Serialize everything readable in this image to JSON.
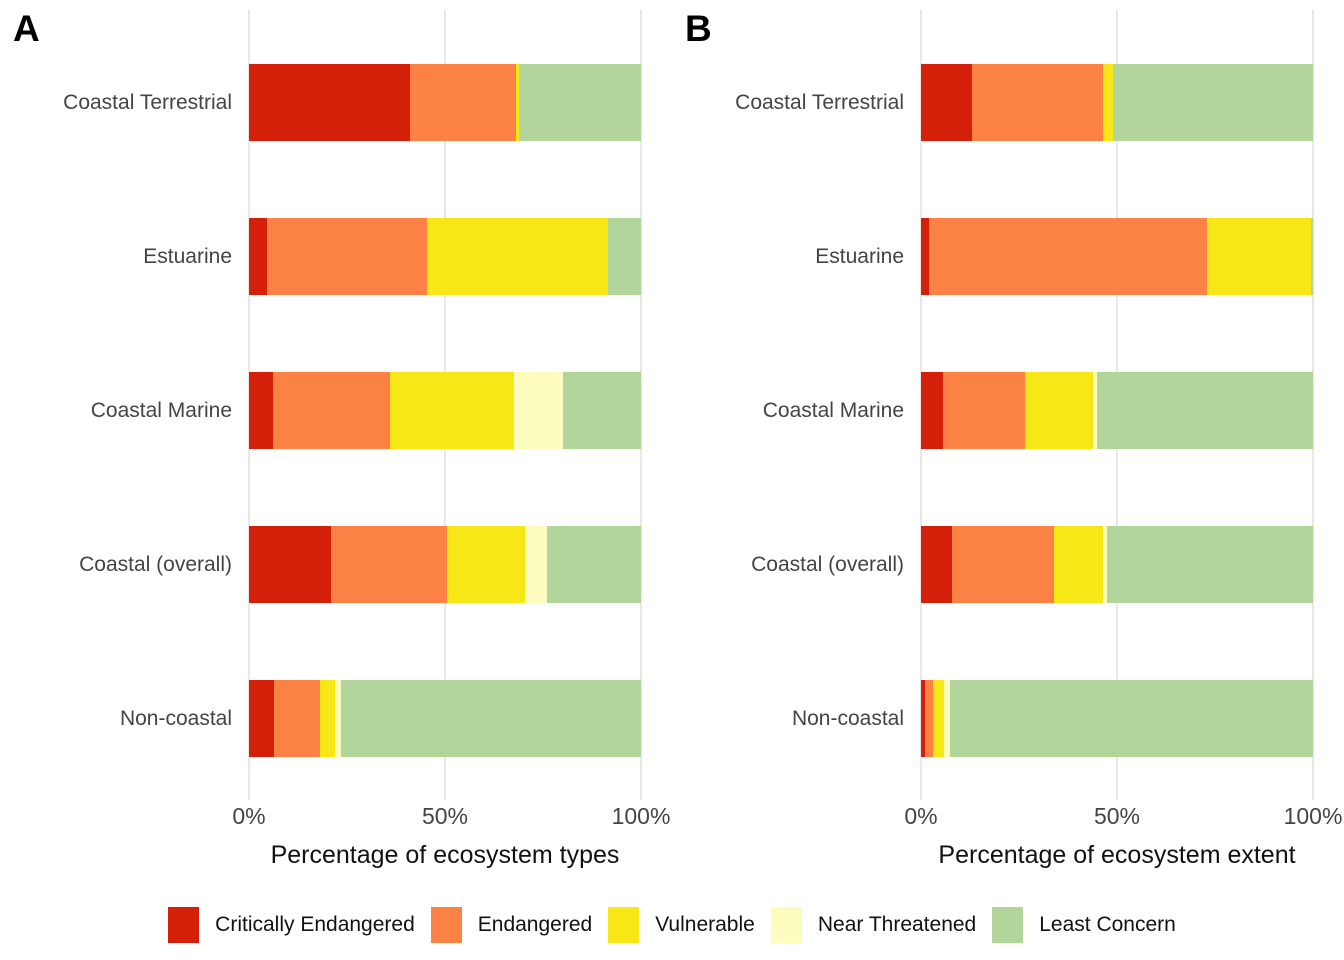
{
  "figure": {
    "background": "#ffffff",
    "gridline_color": "#e8e8e8",
    "panels": [
      {
        "letter": "A",
        "x_title": "Percentage of ecosystem types",
        "x_ticks": [
          "0%",
          "50%",
          "100%"
        ]
      },
      {
        "letter": "B",
        "x_title": "Percentage of ecosystem extent",
        "x_ticks": [
          "0%",
          "50%",
          "100%"
        ]
      }
    ]
  },
  "legend": {
    "items": [
      {
        "label": "Critically Endangered",
        "color": "#d42008"
      },
      {
        "label": "Endangered",
        "color": "#fb8145"
      },
      {
        "label": "Vulnerable",
        "color": "#f8e717"
      },
      {
        "label": "Near Threatened",
        "color": "#fdfcbf"
      },
      {
        "label": "Least Concern",
        "color": "#b2d59c"
      }
    ]
  },
  "chart_data": [
    {
      "panel": "a",
      "type": "bar",
      "orientation": "horizontal",
      "stacked": true,
      "title": "A",
      "xlabel": "Percentage of ecosystem types",
      "xlim": [
        0,
        100
      ],
      "xtick_values": [
        0,
        50,
        100
      ],
      "grid": true,
      "legend_position": "bottom",
      "categories": [
        "Coastal Terrestrial",
        "Estuarine",
        "Coastal Marine",
        "Coastal (overall)",
        "Non-coastal"
      ],
      "series": [
        {
          "name": "Critically Endangered",
          "color": "#d42008",
          "values": [
            41,
            4.5,
            6,
            21,
            6.5
          ]
        },
        {
          "name": "Endangered",
          "color": "#fb8145",
          "values": [
            27,
            41,
            30,
            29.5,
            11.5
          ]
        },
        {
          "name": "Vulnerable",
          "color": "#f8e717",
          "values": [
            1,
            46,
            31.5,
            20,
            4
          ]
        },
        {
          "name": "Near Threatened",
          "color": "#fdfcbf",
          "values": [
            0,
            0,
            12.5,
            5.5,
            1.5
          ]
        },
        {
          "name": "Least Concern",
          "color": "#b2d59c",
          "values": [
            31,
            8.5,
            20,
            24,
            76.5
          ]
        }
      ]
    },
    {
      "panel": "b",
      "type": "bar",
      "orientation": "horizontal",
      "stacked": true,
      "title": "B",
      "xlabel": "Percentage of ecosystem extent",
      "xlim": [
        0,
        100
      ],
      "xtick_values": [
        0,
        50,
        100
      ],
      "grid": true,
      "legend_position": "bottom",
      "categories": [
        "Coastal Terrestrial",
        "Estuarine",
        "Coastal Marine",
        "Coastal (overall)",
        "Non-coastal"
      ],
      "series": [
        {
          "name": "Critically Endangered",
          "color": "#d42008",
          "values": [
            13,
            2,
            5.5,
            8,
            1
          ]
        },
        {
          "name": "Endangered",
          "color": "#fb8145",
          "values": [
            33.5,
            71,
            21,
            26,
            2
          ]
        },
        {
          "name": "Vulnerable",
          "color": "#f8e717",
          "values": [
            2.5,
            26.5,
            17.5,
            12.5,
            3
          ]
        },
        {
          "name": "Near Threatened",
          "color": "#fdfcbf",
          "values": [
            0,
            0,
            1,
            1,
            1.5
          ]
        },
        {
          "name": "Least Concern",
          "color": "#b2d59c",
          "values": [
            51,
            0.5,
            55,
            52.5,
            92.5
          ]
        }
      ]
    }
  ]
}
